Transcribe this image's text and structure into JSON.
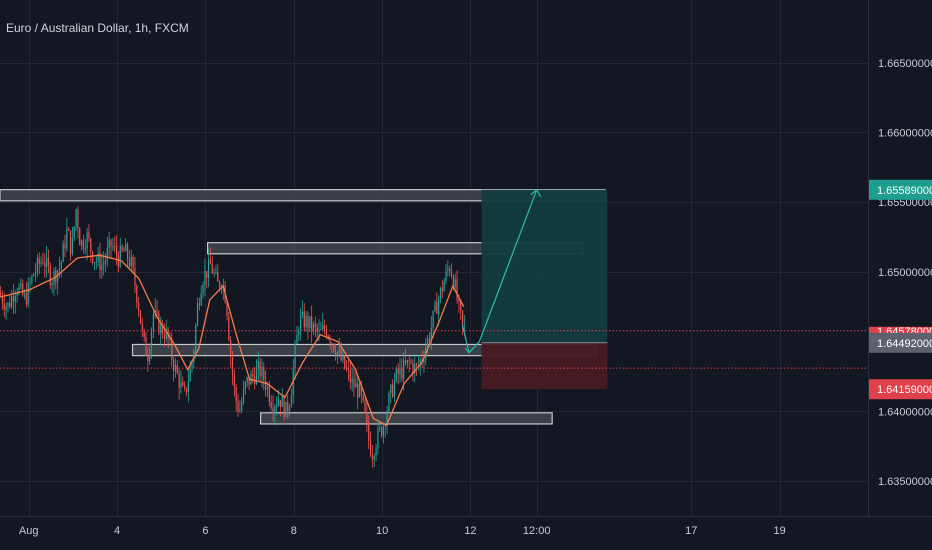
{
  "header": {
    "symbol_title": "Euro / Australian Dollar, 1h, FXCM"
  },
  "colors": {
    "background": "#131722",
    "grid": "#232734",
    "axis_text": "#c9ccd4",
    "up": "#26a69a",
    "down": "#ef5350",
    "ma": "#f57c4a",
    "zone_fill": "#4a4d55",
    "zone_border": "#c8c9cc",
    "profit_fill": "#123c3f",
    "loss_fill": "#471a24",
    "badge_target": "#1e9e8f",
    "badge_current": "#5d616b",
    "badge_stop": "#e0404a",
    "projection": "#2bb5a3",
    "price_line": "#e0404a"
  },
  "chart_data": {
    "type": "candlestick",
    "title": "Euro / Australian Dollar, 1h, FXCM",
    "x_axis": {
      "tick_labels": [
        "Aug",
        "4",
        "6",
        "8",
        "10",
        "12",
        "12:00",
        "17",
        "19"
      ],
      "tick_days": [
        2,
        4,
        6,
        8,
        10,
        12,
        13.5,
        17,
        19
      ],
      "range_days": [
        1.35,
        21.0
      ]
    },
    "y_axis": {
      "tick_labels": [
        "1.66500000",
        "1.66000000",
        "1.65500000",
        "1.65000000",
        "1.64578000",
        "1.64000000",
        "1.63500000"
      ],
      "tick_values": [
        1.665,
        1.66,
        1.655,
        1.65,
        1.64578,
        1.64,
        1.635
      ],
      "range": [
        1.6325,
        1.6695
      ]
    },
    "price_path": [
      [
        1.35,
        1.6485
      ],
      [
        1.55,
        1.6475
      ],
      [
        1.75,
        1.649
      ],
      [
        1.95,
        1.648
      ],
      [
        2.15,
        1.65
      ],
      [
        2.35,
        1.651
      ],
      [
        2.55,
        1.6495
      ],
      [
        2.75,
        1.6505
      ],
      [
        2.9,
        1.653
      ],
      [
        3.0,
        1.6515
      ],
      [
        3.1,
        1.6545
      ],
      [
        3.2,
        1.652
      ],
      [
        3.35,
        1.6525
      ],
      [
        3.5,
        1.651
      ],
      [
        3.7,
        1.6505
      ],
      [
        3.9,
        1.652
      ],
      [
        4.05,
        1.651
      ],
      [
        4.2,
        1.6515
      ],
      [
        4.35,
        1.6505
      ],
      [
        4.5,
        1.648
      ],
      [
        4.62,
        1.645
      ],
      [
        4.72,
        1.644
      ],
      [
        4.85,
        1.647
      ],
      [
        5.0,
        1.646
      ],
      [
        5.15,
        1.6455
      ],
      [
        5.3,
        1.6435
      ],
      [
        5.45,
        1.642
      ],
      [
        5.55,
        1.641
      ],
      [
        5.65,
        1.6425
      ],
      [
        5.75,
        1.644
      ],
      [
        5.85,
        1.6475
      ],
      [
        5.95,
        1.6495
      ],
      [
        6.05,
        1.65
      ],
      [
        6.15,
        1.6505
      ],
      [
        6.3,
        1.649
      ],
      [
        6.4,
        1.6495
      ],
      [
        6.5,
        1.648
      ],
      [
        6.6,
        1.644
      ],
      [
        6.7,
        1.641
      ],
      [
        6.8,
        1.64
      ],
      [
        6.95,
        1.642
      ],
      [
        7.1,
        1.6425
      ],
      [
        7.25,
        1.643
      ],
      [
        7.4,
        1.642
      ],
      [
        7.55,
        1.6405
      ],
      [
        7.7,
        1.641
      ],
      [
        7.85,
        1.64
      ],
      [
        7.95,
        1.641
      ],
      [
        8.05,
        1.644
      ],
      [
        8.15,
        1.6465
      ],
      [
        8.3,
        1.6465
      ],
      [
        8.45,
        1.646
      ],
      [
        8.6,
        1.6455
      ],
      [
        8.75,
        1.646
      ],
      [
        8.9,
        1.645
      ],
      [
        9.05,
        1.644
      ],
      [
        9.2,
        1.643
      ],
      [
        9.35,
        1.642
      ],
      [
        9.5,
        1.6415
      ],
      [
        9.62,
        1.64
      ],
      [
        9.72,
        1.638
      ],
      [
        9.8,
        1.637
      ],
      [
        9.9,
        1.638
      ],
      [
        10.05,
        1.639
      ],
      [
        10.2,
        1.641
      ],
      [
        10.35,
        1.6425
      ],
      [
        10.5,
        1.643
      ],
      [
        10.65,
        1.6435
      ],
      [
        10.8,
        1.643
      ],
      [
        10.95,
        1.644
      ],
      [
        11.1,
        1.6455
      ],
      [
        11.25,
        1.6475
      ],
      [
        11.4,
        1.649
      ],
      [
        11.55,
        1.6505
      ],
      [
        11.65,
        1.6495
      ],
      [
        11.75,
        1.6475
      ],
      [
        11.85,
        1.646
      ]
    ],
    "moving_average": {
      "name": "",
      "path": [
        [
          1.35,
          1.6482
        ],
        [
          2.0,
          1.6487
        ],
        [
          2.6,
          1.6496
        ],
        [
          3.1,
          1.651
        ],
        [
          3.6,
          1.6512
        ],
        [
          4.1,
          1.6508
        ],
        [
          4.5,
          1.6495
        ],
        [
          4.9,
          1.6468
        ],
        [
          5.3,
          1.6448
        ],
        [
          5.6,
          1.643
        ],
        [
          5.85,
          1.6445
        ],
        [
          6.1,
          1.648
        ],
        [
          6.4,
          1.649
        ],
        [
          6.7,
          1.6455
        ],
        [
          7.0,
          1.6423
        ],
        [
          7.4,
          1.642
        ],
        [
          7.8,
          1.641
        ],
        [
          8.2,
          1.6435
        ],
        [
          8.6,
          1.6455
        ],
        [
          9.0,
          1.645
        ],
        [
          9.4,
          1.643
        ],
        [
          9.8,
          1.6395
        ],
        [
          10.1,
          1.639
        ],
        [
          10.5,
          1.642
        ],
        [
          10.9,
          1.6435
        ],
        [
          11.3,
          1.6465
        ],
        [
          11.6,
          1.649
        ],
        [
          11.85,
          1.6475
        ]
      ]
    },
    "price_lines": [
      {
        "price": 1.64578
      },
      {
        "price": 1.6431
      }
    ],
    "price_badges": [
      {
        "label": "1.65589000",
        "price": 1.65589,
        "role": "target"
      },
      {
        "label": "1.64578000",
        "price": 1.64578,
        "role": "last-price"
      },
      {
        "label": "1.64492000",
        "price": 1.64492,
        "role": "current"
      },
      {
        "label": "1.64159000",
        "price": 1.64159,
        "role": "stop"
      }
    ],
    "zones": [
      {
        "name": "resistance-upper",
        "x_start": 1.35,
        "x_end": 15.05,
        "y_low": 1.6551,
        "y_high": 1.6559
      },
      {
        "name": "resistance-mid",
        "x_start": 6.05,
        "x_end": 14.55,
        "y_low": 1.6513,
        "y_high": 1.6521
      },
      {
        "name": "support-mid",
        "x_start": 4.35,
        "x_end": 14.85,
        "y_low": 1.644,
        "y_high": 1.6448
      },
      {
        "name": "support-lower",
        "x_start": 7.25,
        "x_end": 13.85,
        "y_low": 1.6391,
        "y_high": 1.6399
      }
    ],
    "position": {
      "type": "long",
      "x_start": 12.25,
      "x_end": 15.1,
      "entry": 1.64492,
      "target": 1.65589,
      "stop": 1.64159
    },
    "projection_path": [
      [
        11.82,
        1.6462
      ],
      [
        11.97,
        1.6442
      ],
      [
        12.2,
        1.645
      ],
      [
        13.5,
        1.65589
      ]
    ],
    "grid": true,
    "legend": "none"
  }
}
